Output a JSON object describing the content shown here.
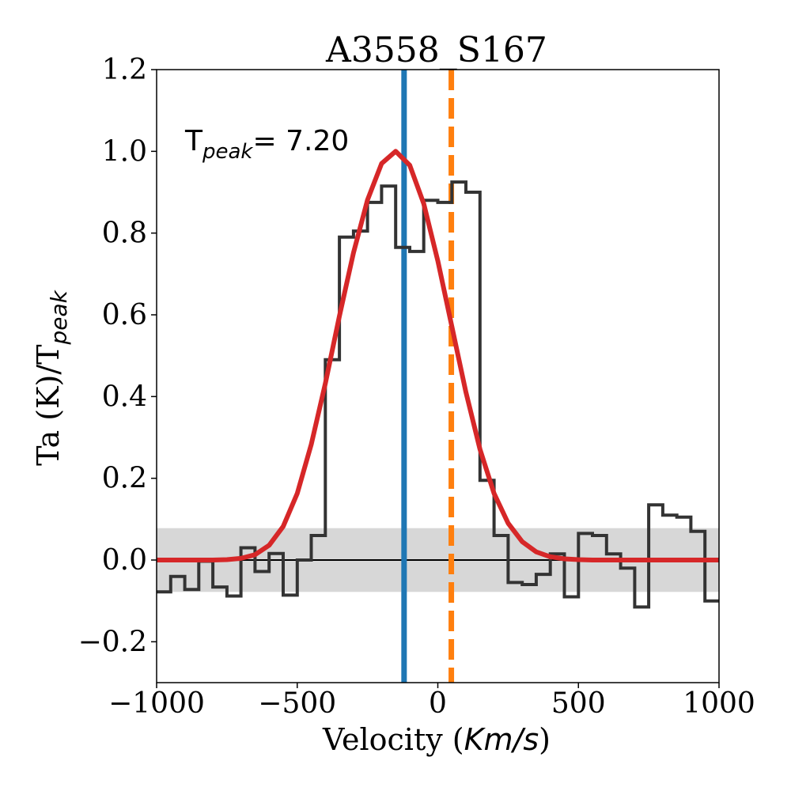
{
  "chart_data": {
    "type": "line",
    "title": "A3558_S167",
    "xlabel": "Velocity",
    "xlabel_unit": "Km/s",
    "ylabel_prefix": "Ta (K)/T",
    "ylabel_sub": "peak",
    "annotation": {
      "main": "T",
      "sub": "peak",
      "value": "= 7.20"
    },
    "xlim": [
      -1000,
      1000
    ],
    "ylim": [
      -0.3,
      1.2
    ],
    "xticks": [
      -1000,
      -500,
      0,
      500,
      1000
    ],
    "xtick_labels": [
      "−1000",
      "−500",
      "0",
      "500",
      "1000"
    ],
    "yticks": [
      -0.2,
      0.0,
      0.2,
      0.4,
      0.6,
      0.8,
      1.0,
      1.2
    ],
    "ytick_labels": [
      "−0.2",
      "0.0",
      "0.2",
      "0.4",
      "0.6",
      "0.8",
      "1.0",
      "1.2"
    ],
    "noise_band": [
      -0.078,
      0.078
    ],
    "zero_line": 0.0,
    "vline_solid": -120,
    "vline_dashed": 48,
    "colors": {
      "spectrum": "#333333",
      "fit": "#d62728",
      "vline_solid": "#1f77b4",
      "vline_dashed": "#ff7f0e",
      "band": "#d3d3d3"
    },
    "spectrum": {
      "name": "observed spectrum",
      "bin_edges": [
        -1000,
        -950,
        -900,
        -850,
        -800,
        -750,
        -700,
        -650,
        -600,
        -550,
        -500,
        -450,
        -400,
        -350,
        -300,
        -250,
        -200,
        -150,
        -100,
        -50,
        0,
        50,
        100,
        150,
        200,
        250,
        300,
        350,
        400,
        450,
        500,
        550,
        600,
        650,
        700,
        750,
        800,
        850,
        900,
        950,
        1000
      ],
      "values": [
        -0.078,
        -0.04,
        -0.072,
        -0.003,
        -0.066,
        -0.088,
        0.03,
        -0.028,
        0.016,
        -0.086,
        0.0,
        0.06,
        0.49,
        0.79,
        0.805,
        0.875,
        0.915,
        0.765,
        0.755,
        0.88,
        0.875,
        0.925,
        0.9,
        0.195,
        0.06,
        -0.055,
        -0.06,
        -0.035,
        0.015,
        -0.09,
        0.065,
        0.06,
        0.015,
        -0.02,
        -0.115,
        0.135,
        0.11,
        0.105,
        0.07,
        -0.1
      ]
    },
    "fit": {
      "name": "gaussian fit",
      "x": [
        -1000,
        -950,
        -900,
        -850,
        -800,
        -750,
        -700,
        -650,
        -600,
        -550,
        -500,
        -450,
        -400,
        -350,
        -300,
        -250,
        -200,
        -150,
        -100,
        -50,
        0,
        50,
        100,
        150,
        200,
        250,
        300,
        350,
        400,
        450,
        500,
        550,
        600,
        650,
        700,
        750,
        800,
        850,
        900,
        950,
        1000
      ],
      "y": [
        0.0,
        0.0,
        0.0,
        0.0,
        0.0,
        0.001,
        0.004,
        0.013,
        0.036,
        0.082,
        0.163,
        0.283,
        0.432,
        0.597,
        0.752,
        0.881,
        0.97,
        1.0,
        0.966,
        0.872,
        0.732,
        0.571,
        0.411,
        0.271,
        0.163,
        0.09,
        0.045,
        0.02,
        0.008,
        0.003,
        0.001,
        0.0,
        0.0,
        0.0,
        0.0,
        0.0,
        0.0,
        0.0,
        0.0,
        0.0,
        0.0
      ]
    }
  }
}
